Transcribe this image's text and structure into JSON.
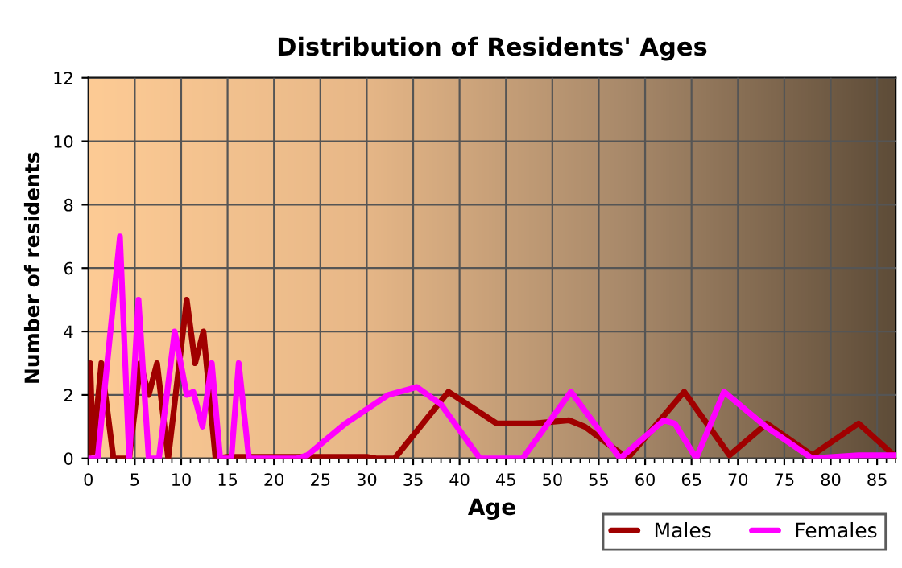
{
  "chart_data": {
    "type": "line",
    "title": "Distribution of Residents' Ages",
    "xlabel": "Age",
    "ylabel": "Number of residents",
    "xlim": [
      0,
      87
    ],
    "xticks": [
      0,
      5,
      10,
      15,
      20,
      25,
      30,
      35,
      40,
      45,
      50,
      55,
      60,
      65,
      70,
      75,
      80,
      85
    ],
    "ylim": [
      0,
      12
    ],
    "yticks": [
      0,
      2,
      4,
      6,
      8,
      10,
      12
    ],
    "grid": true,
    "legend": "bottom right",
    "marker": "none",
    "line_style": "solid",
    "series": [
      {
        "name": "Males",
        "color": "#a00000",
        "x": [
          0,
          0.2,
          0.5,
          1.4,
          2.7,
          4.4,
          5.6,
          6.5,
          7.4,
          8.6,
          10.6,
          11.5,
          12.4,
          13.7,
          15,
          30,
          31,
          33,
          38.8,
          44,
          48,
          51.8,
          53.5,
          58.1,
          64.2,
          69.1,
          73.1,
          78,
          83,
          87
        ],
        "values": [
          0,
          3,
          0.2,
          3,
          0,
          0,
          3,
          2,
          3,
          0,
          5,
          3,
          4,
          0,
          0.05,
          0.05,
          0,
          0,
          2.1,
          1.1,
          1.1,
          1.2,
          1.0,
          0,
          2.1,
          0.1,
          1.1,
          0.1,
          1.1,
          0.05
        ]
      },
      {
        "name": "Females",
        "color": "#ff00ff",
        "x": [
          0,
          1,
          3.4,
          4.4,
          5.4,
          6.5,
          7.6,
          9.3,
          10.6,
          11.3,
          12.3,
          13.3,
          14.2,
          15.4,
          16.2,
          17.3,
          22.5,
          23.6,
          27.7,
          32.3,
          35.4,
          38,
          42.2,
          46.8,
          52,
          57.3,
          62,
          63.2,
          65.5,
          68.5,
          73,
          78,
          83,
          87
        ],
        "values": [
          0,
          0,
          7,
          0,
          5,
          0,
          0,
          4,
          2,
          2.1,
          1,
          3,
          0,
          0,
          3,
          0,
          0,
          0.1,
          1.1,
          2.0,
          2.25,
          1.7,
          0,
          0,
          2.1,
          0,
          1.2,
          1.1,
          0,
          2.1,
          1.0,
          0,
          0.1,
          0.1
        ]
      }
    ]
  }
}
